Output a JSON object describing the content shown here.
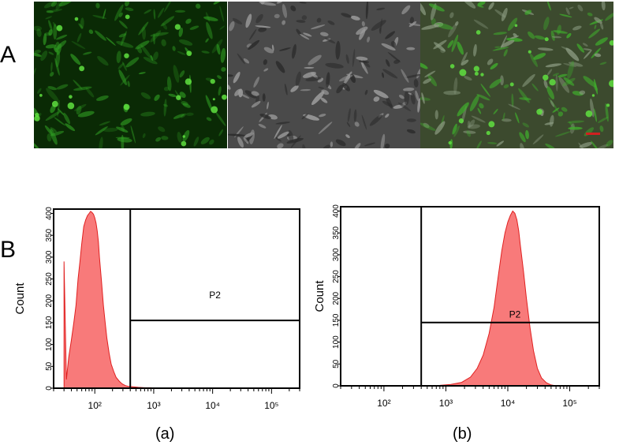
{
  "panel_a": {
    "letter": "A"
  },
  "panel_b": {
    "letter": "B"
  },
  "microscopy": [
    {
      "name": "fluorescence-image",
      "style": "green"
    },
    {
      "name": "brightfield-image",
      "style": "gray"
    },
    {
      "name": "merged-image",
      "style": "merge",
      "scale_bar_color": "#d02020"
    }
  ],
  "colors": {
    "histogram_fill": "#f87a7a",
    "histogram_line": "#e02020"
  },
  "chart_data": [
    {
      "type": "area",
      "sublabel": "(a)",
      "ylabel": "Count",
      "xscale": "log",
      "xlim": [
        20,
        300000
      ],
      "ylim": [
        0,
        410
      ],
      "yticks": [
        0,
        50,
        100,
        150,
        200,
        250,
        300,
        350,
        400
      ],
      "xticks": [
        100,
        1000,
        10000,
        100000
      ],
      "xtick_labels": [
        "10²",
        "10³",
        "10⁴",
        "10⁵"
      ],
      "gate": {
        "label": "P2",
        "x_start": 400,
        "y_level": 155
      },
      "x": [
        30,
        33,
        36,
        40,
        44,
        48,
        52,
        56,
        60,
        65,
        70,
        75,
        80,
        85,
        90,
        95,
        100,
        105,
        110,
        115,
        120,
        130,
        140,
        150,
        160,
        175,
        190,
        210,
        230,
        260,
        290,
        330,
        380,
        450,
        550,
        700,
        900,
        1200,
        1500
      ],
      "values": [
        290,
        20,
        70,
        110,
        150,
        190,
        250,
        290,
        330,
        370,
        385,
        395,
        400,
        405,
        402,
        398,
        390,
        378,
        360,
        335,
        300,
        245,
        190,
        150,
        115,
        80,
        55,
        38,
        25,
        16,
        10,
        6,
        4,
        3,
        2,
        1,
        1,
        0,
        0
      ]
    },
    {
      "type": "area",
      "sublabel": "(b)",
      "ylabel": "Count",
      "xscale": "log",
      "xlim": [
        20,
        300000
      ],
      "ylim": [
        0,
        410
      ],
      "yticks": [
        0,
        50,
        100,
        150,
        200,
        250,
        300,
        350,
        400
      ],
      "xticks": [
        100,
        1000,
        10000,
        100000
      ],
      "xtick_labels": [
        "10²",
        "10³",
        "10⁴",
        "10⁵"
      ],
      "gate": {
        "label": "P2",
        "x_start": 400,
        "y_level": 145
      },
      "x": [
        500,
        800,
        1200,
        1800,
        2500,
        3200,
        4000,
        5000,
        6000,
        7000,
        8000,
        9000,
        10000,
        11000,
        12000,
        13000,
        14000,
        15000,
        16000,
        18000,
        20000,
        23000,
        26000,
        30000,
        35000,
        42000,
        50000,
        60000
      ],
      "values": [
        0,
        1,
        3,
        8,
        20,
        40,
        70,
        120,
        180,
        250,
        310,
        350,
        375,
        390,
        400,
        395,
        380,
        355,
        320,
        260,
        200,
        130,
        80,
        40,
        18,
        7,
        2,
        0
      ]
    }
  ]
}
